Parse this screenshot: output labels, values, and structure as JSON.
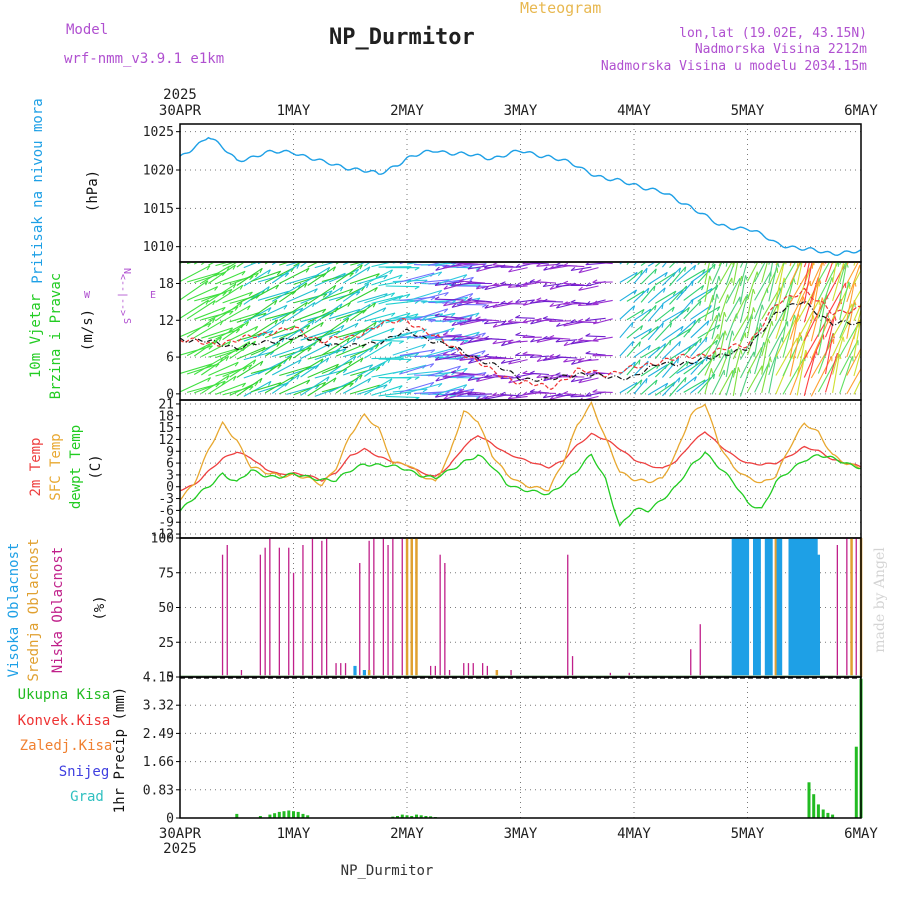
{
  "header": {
    "model_label": "Model",
    "model_name": "wrf-nmm_v3.9.1 e1km",
    "title": "NP_Durmitor",
    "subtitle": "Meteogram",
    "coords": "lon,lat (19.02E, 43.15N)",
    "elevation": "Nadmorska Visina 2212m",
    "model_elevation": "Nadmorska Visina u modelu 2034.15m"
  },
  "footer": {
    "station": "NP_Durmitor",
    "watermark": "made by Angel"
  },
  "time_axis": {
    "labels": [
      "30APR",
      "1MAY",
      "2MAY",
      "3MAY",
      "4MAY",
      "5MAY",
      "6MAY"
    ],
    "year": "2025"
  },
  "colors": {
    "pressure": "#1ea0e6",
    "temp2m": "#ee4040",
    "sfc_temp": "#e8a830",
    "dewpt": "#22cc22",
    "high_cloud": "#1ea0e6",
    "mid_cloud": "#e0a030",
    "low_cloud": "#c0208a",
    "total_precip": "#22bb22",
    "wind_speed": "#111111",
    "wind_gust": "#ee3333"
  },
  "chart_data": [
    {
      "type": "line",
      "id": "pressure",
      "ylabel_lines": [
        "Pritisak na nivou mora",
        "(hPa)"
      ],
      "ylim": [
        1008,
        1026
      ],
      "yticks": [
        1010,
        1015,
        1020,
        1025
      ],
      "x_hours": [
        0,
        6,
        12,
        18,
        24,
        30,
        36,
        42,
        48,
        54,
        60,
        66,
        72,
        78,
        84,
        90,
        96,
        102,
        108,
        114,
        120,
        126,
        132,
        138,
        144
      ],
      "series": [
        {
          "values": [
            1021.5,
            1024.5,
            1021.2,
            1022.2,
            1022.4,
            1021.0,
            1020.3,
            1019.4,
            1021.5,
            1022.6,
            1022.0,
            1021.6,
            1022.4,
            1021.8,
            1020.5,
            1018.8,
            1018.2,
            1017.0,
            1015.3,
            1012.7,
            1012.4,
            1010.5,
            1009.6,
            1009.2,
            1009.3
          ]
        }
      ]
    },
    {
      "type": "line",
      "id": "wind",
      "ylabel_lines": [
        "10m Vjetar",
        "Brzina i Pravac",
        "(m/s)"
      ],
      "compass": {
        "n": "N",
        "s": "S",
        "w": "W",
        "e": "E",
        "arrow": "<--|-->"
      },
      "ylim": [
        -1,
        21.5
      ],
      "yticks": [
        0,
        6,
        12,
        18
      ],
      "x_hours": [
        0,
        6,
        12,
        18,
        24,
        30,
        36,
        42,
        48,
        54,
        60,
        66,
        72,
        78,
        84,
        90,
        96,
        102,
        108,
        114,
        120,
        126,
        132,
        138,
        144
      ],
      "series": [
        {
          "name": "speed",
          "values": [
            9.0,
            8.5,
            7.6,
            8.3,
            9.3,
            8.5,
            7.6,
            8.5,
            10.1,
            8.6,
            6.8,
            4.8,
            2.6,
            2.2,
            3.4,
            2.7,
            2.8,
            5.1,
            4.9,
            6.4,
            7.2,
            13.3,
            15.0,
            11.4,
            11.5
          ]
        },
        {
          "name": "gust",
          "values": [
            8.8,
            8.2,
            8.6,
            10.0,
            10.6,
            8.7,
            9.1,
            11.2,
            12.1,
            9.2,
            6.7,
            3.6,
            1.9,
            1.0,
            3.7,
            3.3,
            4.1,
            5.5,
            6.0,
            7.1,
            8.0,
            14.4,
            17.1,
            13.0,
            14.2
          ]
        }
      ]
    },
    {
      "type": "line",
      "id": "temperature",
      "ylabel_lines": [
        "2m Temp",
        "SFC Temp",
        "dewpt Temp",
        "(C)"
      ],
      "ylim": [
        -13,
        22
      ],
      "yticks": [
        21,
        18,
        15,
        12,
        9,
        6,
        3,
        0,
        -3,
        -6,
        -9,
        -12
      ],
      "x_hours": [
        0,
        3,
        6,
        9,
        12,
        15,
        18,
        21,
        24,
        27,
        30,
        33,
        36,
        39,
        42,
        45,
        48,
        51,
        54,
        57,
        60,
        63,
        66,
        69,
        72,
        75,
        78,
        81,
        84,
        87,
        90,
        93,
        96,
        99,
        102,
        105,
        108,
        111,
        114,
        117,
        120,
        123,
        126,
        129,
        132,
        135,
        138,
        141,
        144
      ],
      "series": [
        {
          "name": "2m Temp",
          "values": [
            -1.0,
            0.5,
            4.0,
            7.0,
            8.8,
            7.5,
            4.5,
            3.0,
            3.5,
            3.0,
            1.5,
            3.5,
            8.0,
            9.5,
            7.5,
            6.5,
            5.5,
            3.5,
            2.5,
            5.5,
            10.0,
            13.0,
            11.0,
            8.5,
            7.0,
            6.0,
            5.0,
            6.5,
            10.5,
            13.5,
            12.0,
            9.5,
            7.0,
            5.5,
            4.5,
            6.5,
            11.0,
            14.0,
            10.5,
            8.0,
            6.0,
            5.5,
            6.0,
            8.0,
            10.0,
            9.0,
            7.0,
            6.0,
            5.0
          ]
        },
        {
          "name": "SFC Temp",
          "values": [
            -3.0,
            1.0,
            9.0,
            16.0,
            12.0,
            5.0,
            3.5,
            3.0,
            3.0,
            2.0,
            0.5,
            5.0,
            13.0,
            18.0,
            15.0,
            6.0,
            5.5,
            3.0,
            1.5,
            8.0,
            19.0,
            17.0,
            8.0,
            3.0,
            1.0,
            0.0,
            -1.0,
            6.0,
            16.0,
            21.0,
            12.0,
            4.0,
            2.0,
            1.0,
            2.0,
            9.0,
            18.0,
            21.0,
            11.0,
            5.0,
            2.0,
            1.0,
            3.0,
            10.0,
            16.0,
            14.0,
            8.0,
            5.5,
            5.0
          ]
        },
        {
          "name": "dewpt Temp",
          "values": [
            -6.0,
            -3.0,
            0.0,
            3.5,
            1.0,
            4.0,
            3.0,
            2.5,
            3.0,
            2.5,
            2.0,
            1.5,
            4.0,
            6.0,
            5.5,
            5.0,
            4.5,
            3.0,
            2.0,
            4.0,
            6.5,
            8.0,
            5.0,
            1.0,
            -0.5,
            -1.5,
            -2.0,
            1.0,
            4.0,
            8.0,
            2.0,
            -10.0,
            -6.0,
            -6.0,
            -3.0,
            0.0,
            5.0,
            9.0,
            5.0,
            1.0,
            -4.0,
            -5.5,
            1.0,
            4.0,
            7.0,
            8.0,
            7.0,
            6.0,
            5.0
          ]
        }
      ]
    },
    {
      "type": "bar",
      "id": "clouds",
      "ylabel_lines": [
        "Visoka Oblacnost",
        "Srednja Oblacnost",
        "Niska Oblacnost",
        "(%)"
      ],
      "ylim": [
        0,
        100
      ],
      "yticks": [
        0,
        25,
        50,
        75,
        100
      ],
      "series": [
        {
          "name": "Niska Oblacnost",
          "x_hours": [
            9,
            10,
            13,
            17,
            18,
            19,
            21,
            23,
            24,
            26,
            28,
            30,
            31,
            33,
            34,
            35,
            38,
            40,
            41,
            43,
            44,
            45,
            47,
            49,
            50,
            53,
            54,
            55,
            56,
            57,
            60,
            61,
            62,
            64,
            65,
            67,
            70,
            82,
            83,
            91,
            95,
            108,
            110,
            125,
            139,
            141,
            143
          ],
          "values": [
            88,
            95,
            5,
            88,
            93,
            100,
            93,
            93,
            75,
            95,
            100,
            98,
            100,
            10,
            10,
            10,
            82,
            98,
            100,
            100,
            95,
            100,
            100,
            85,
            100,
            8,
            8,
            88,
            82,
            5,
            10,
            10,
            10,
            10,
            8,
            5,
            5,
            88,
            15,
            3,
            3,
            20,
            38,
            28,
            95,
            100,
            100
          ]
        },
        {
          "name": "Srednja Oblacnost",
          "x_hours": [
            40,
            48,
            49,
            50,
            67,
            122,
            125,
            126,
            142,
            144
          ],
          "values": [
            5,
            100,
            100,
            100,
            5,
            100,
            100,
            100,
            100,
            100
          ]
        },
        {
          "name": "Visoka Oblacnost",
          "x_hours": [
            37,
            39,
            117,
            117.5,
            118,
            118.5,
            119,
            119.5,
            120,
            121.5,
            122,
            122.5,
            124,
            124.5,
            125,
            126.5,
            127,
            129,
            129.5,
            130,
            130.5,
            131,
            131.5,
            132,
            132.5,
            133,
            133.5,
            134,
            134.5,
            135
          ],
          "values": [
            8,
            5,
            100,
            100,
            100,
            100,
            100,
            100,
            100,
            100,
            100,
            100,
            100,
            100,
            100,
            100,
            100,
            100,
            100,
            100,
            100,
            100,
            100,
            100,
            100,
            100,
            100,
            100,
            100,
            88
          ]
        }
      ]
    },
    {
      "type": "bar",
      "id": "precip",
      "ylabel_lines": [
        "1hr Precip (mm)"
      ],
      "legend": [
        "Ukupna Kisa",
        "Konvek.Kisa",
        "Zaledj.Kisa",
        "Snijeg",
        "Grad"
      ],
      "legend_colors": [
        "#22bb22",
        "#ee3333",
        "#f08030",
        "#4040e0",
        "#30c0c0"
      ],
      "ylim": [
        0,
        4.15
      ],
      "yticks": [
        0,
        0.83,
        1.66,
        2.49,
        3.32,
        4.15
      ],
      "ytick_labels": [
        "0",
        "0.83",
        "1.66",
        "2.49",
        "3.32",
        "4.15"
      ],
      "series": [
        {
          "name": "Ukupna Kisa",
          "x_hours": [
            12,
            17,
            19,
            20,
            21,
            22,
            23,
            24,
            25,
            26,
            27,
            45,
            46,
            47,
            48,
            49,
            50,
            51,
            52,
            53,
            54,
            133,
            134,
            135,
            136,
            137,
            138,
            143,
            144
          ],
          "values": [
            0.12,
            0.06,
            0.1,
            0.14,
            0.18,
            0.2,
            0.22,
            0.2,
            0.18,
            0.12,
            0.08,
            0.04,
            0.06,
            0.1,
            0.08,
            0.06,
            0.1,
            0.08,
            0.06,
            0.05,
            0.03,
            1.05,
            0.7,
            0.4,
            0.25,
            0.15,
            0.1,
            2.1,
            4.1
          ]
        }
      ]
    }
  ]
}
